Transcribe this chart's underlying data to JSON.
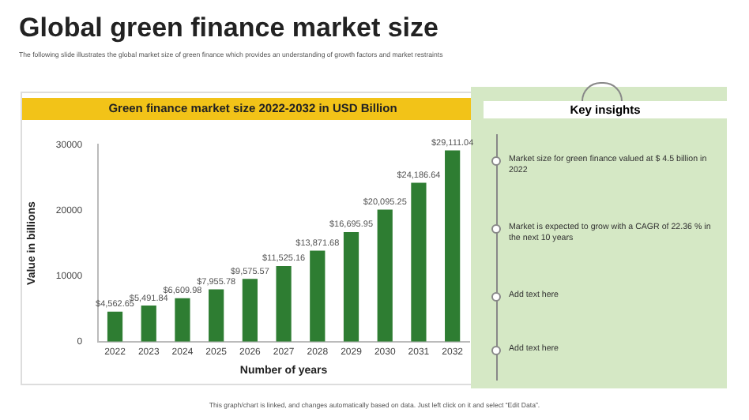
{
  "chart_data": {
    "type": "bar",
    "title": "Global green finance market size",
    "subtitle": "The following slide illustrates the global market size of green finance which provides an understanding of growth factors and market restraints",
    "xlabel": "Number of years",
    "ylabel": "Value in billions",
    "categories": [
      "2022",
      "2023",
      "2024",
      "2025",
      "2026",
      "2027",
      "2028",
      "2029",
      "2030",
      "2031",
      "2032"
    ],
    "values": [
      4562.65,
      5491.84,
      6609.98,
      7955.78,
      9575.57,
      11525.16,
      13871.68,
      16695.95,
      20095.25,
      24186.64,
      29111.04
    ],
    "value_labels": [
      "$4,562.65",
      "$5,491.84",
      "$6,609.98",
      "$7,955.78",
      "$9,575.57",
      "$11,525.16",
      "$13,871.68",
      "$16,695.95",
      "$20,095.25",
      "$24,186.64",
      "$29,111.04"
    ],
    "color": "#2e7d32",
    "ylim": [
      0,
      30000
    ],
    "yticks": [
      0,
      10000,
      20000,
      30000
    ],
    "grid": false,
    "legend": false,
    "annotations": [
      "Green finance market size 2022-2032 in USD Billion",
      "Key insights",
      "Market size for green finance valued at $ 4.5 billion in 2022",
      "Market is expected to grow with a CAGR of 22.36 % in the next 10 years",
      "Add text here",
      "Add text here",
      "This graph/chart is linked, and changes automatically based on data. Just left click on it and select “Edit Data”."
    ]
  }
}
